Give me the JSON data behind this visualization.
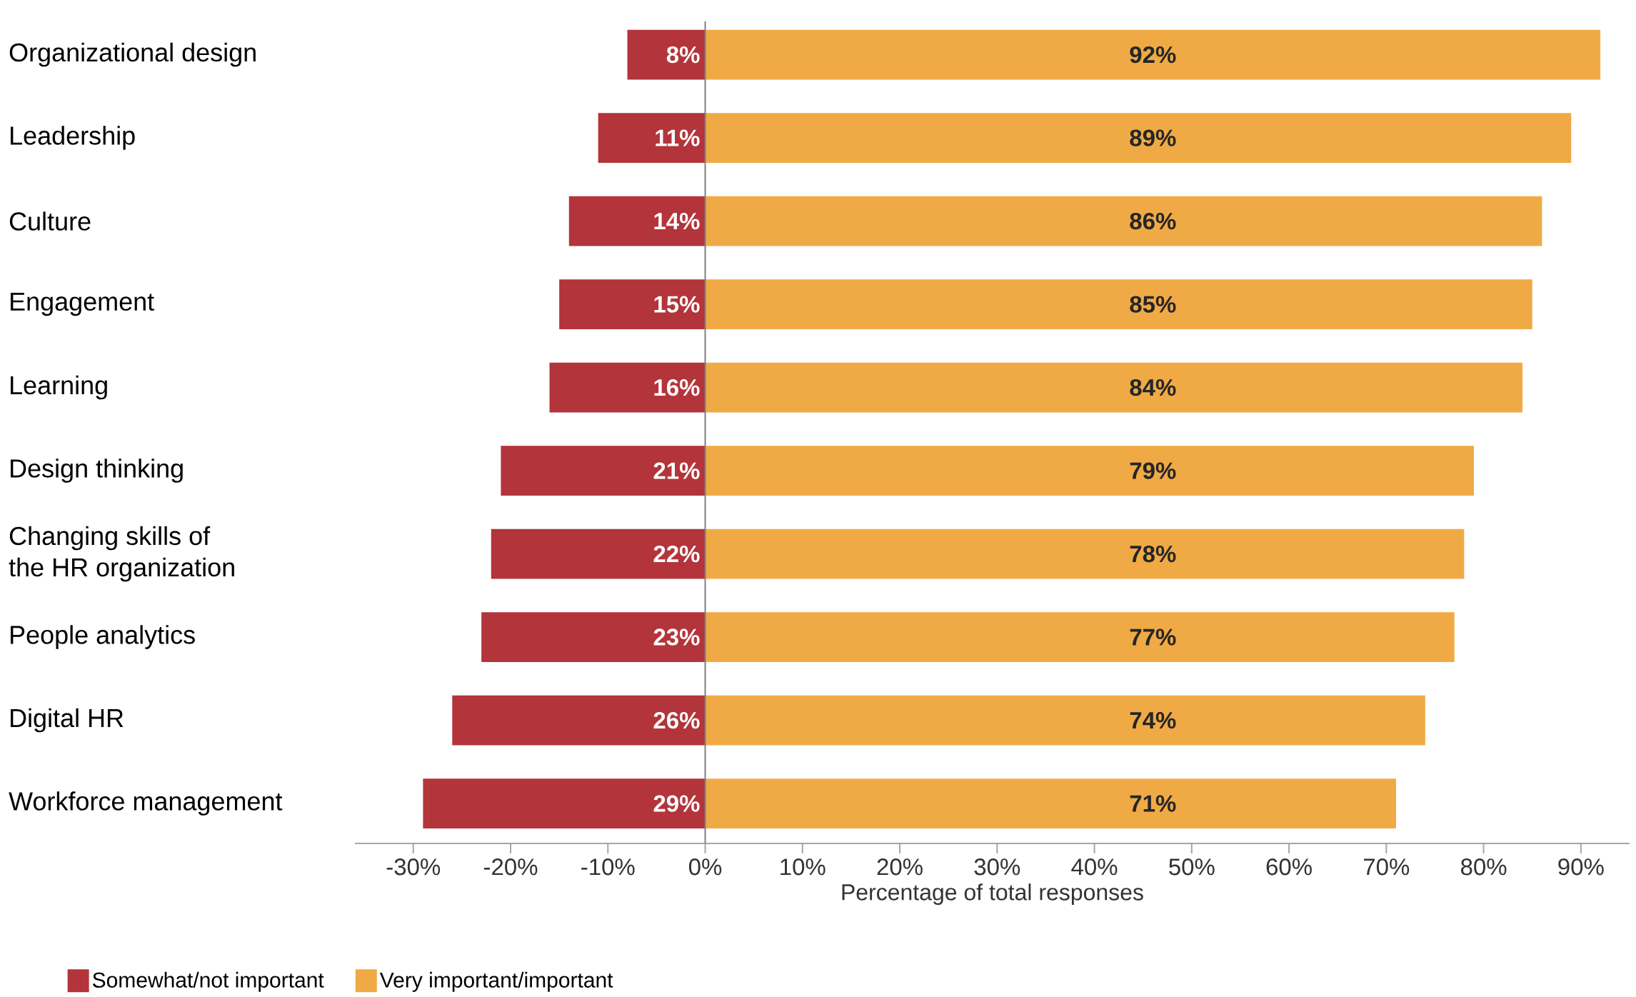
{
  "chart_data": {
    "type": "bar",
    "orientation": "horizontal",
    "categories": [
      "Organizational design",
      "Leadership",
      "Culture",
      "Engagement",
      "Learning",
      "Design thinking",
      "Changing skills of\nthe HR organization",
      "People analytics",
      "Digital HR",
      "Workforce management"
    ],
    "series": [
      {
        "name": "Somewhat/not important",
        "color": "#b3343a",
        "values": [
          8,
          11,
          14,
          15,
          16,
          21,
          22,
          23,
          26,
          29
        ],
        "base": [
          -8,
          -11,
          -14,
          -15,
          -16,
          -21,
          -22,
          -23,
          -26,
          -29
        ],
        "value_labels": [
          "8%",
          "11%",
          "14%",
          "15%",
          "16%",
          "21%",
          "22%",
          "23%",
          "26%",
          "29%"
        ]
      },
      {
        "name": "Very important/important",
        "color": "#f0aa45",
        "values": [
          92,
          89,
          86,
          85,
          84,
          79,
          78,
          77,
          74,
          71
        ],
        "value_labels": [
          "92%",
          "89%",
          "86%",
          "85%",
          "84%",
          "79%",
          "78%",
          "77%",
          "74%",
          "71%"
        ]
      }
    ],
    "xlabel": "Percentage of total responses",
    "xlim": [
      -36,
      95
    ],
    "xticks": [
      {
        "value": -30,
        "label": "-30%"
      },
      {
        "value": -20,
        "label": "-20%"
      },
      {
        "value": -10,
        "label": "-10%"
      },
      {
        "value": 0,
        "label": "0%"
      },
      {
        "value": 10,
        "label": "10%"
      },
      {
        "value": 20,
        "label": "20%"
      },
      {
        "value": 30,
        "label": "30%"
      },
      {
        "value": 40,
        "label": "40%"
      },
      {
        "value": 50,
        "label": "50%"
      },
      {
        "value": 60,
        "label": "60%"
      },
      {
        "value": 70,
        "label": "70%"
      },
      {
        "value": 80,
        "label": "80%"
      },
      {
        "value": 90,
        "label": "90%"
      }
    ],
    "ref_lines": [
      {
        "axis": "x",
        "value": 0,
        "color": "#7f7f7f"
      }
    ],
    "legend": "bottom left"
  }
}
